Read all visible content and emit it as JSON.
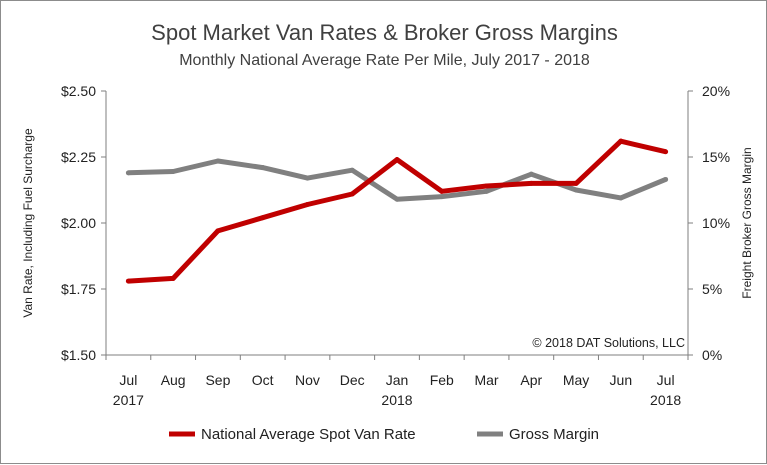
{
  "chart_data": {
    "type": "line",
    "title": "Spot Market Van Rates & Broker Gross Margins",
    "subtitle": "Monthly National Average Rate Per Mile, July 2017 - 2018",
    "categories": [
      "Jul",
      "Aug",
      "Sep",
      "Oct",
      "Nov",
      "Dec",
      "Jan",
      "Feb",
      "Mar",
      "Apr",
      "May",
      "Jun",
      "Jul"
    ],
    "category_years": [
      "2017",
      "",
      "",
      "",
      "",
      "",
      "2018",
      "",
      "",
      "",
      "",
      "",
      "2018"
    ],
    "ylabel": "Van Rate, Including Fuel Surcharge",
    "y2label": "Freight Broker Gross Margin",
    "ylim": [
      1.5,
      2.5
    ],
    "y2lim": [
      0,
      20
    ],
    "y_ticks": [
      "$1.50",
      "$1.75",
      "$2.00",
      "$2.25",
      "$2.50"
    ],
    "y2_ticks": [
      "0%",
      "5%",
      "10%",
      "15%",
      "20%"
    ],
    "series": [
      {
        "name": "National Average Spot Van Rate",
        "axis": "left",
        "color": "#c00000",
        "values": [
          1.78,
          1.79,
          1.97,
          2.02,
          2.07,
          2.11,
          2.24,
          2.12,
          2.14,
          2.15,
          2.15,
          2.31,
          2.27
        ]
      },
      {
        "name": "Gross Margin",
        "axis": "right",
        "color": "#808080",
        "values": [
          13.8,
          13.9,
          14.7,
          14.2,
          13.4,
          14.0,
          11.8,
          12.0,
          12.4,
          13.7,
          12.5,
          11.9,
          13.3
        ]
      }
    ],
    "grid": false,
    "legend": "bottom",
    "annotation": "© 2018 DAT Solutions, LLC"
  }
}
